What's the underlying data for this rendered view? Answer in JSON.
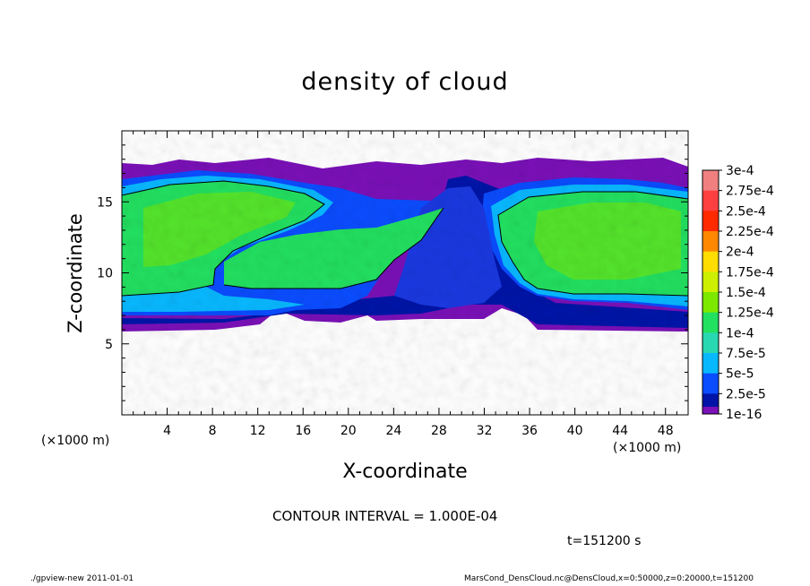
{
  "chart_data": {
    "type": "heatmap",
    "title": "density of cloud",
    "xlabel": "X-coordinate",
    "ylabel": "Z-coordinate",
    "x_unit": "(×1000 m)",
    "x_unit_secondary": "(×1000 m)",
    "xlim": [
      0,
      50
    ],
    "ylim": [
      0,
      20
    ],
    "x_ticks": [
      4,
      8,
      12,
      16,
      20,
      24,
      28,
      32,
      36,
      40,
      44,
      48
    ],
    "y_ticks": [
      5,
      10,
      15
    ],
    "colorbar": {
      "labels": [
        "3e-4",
        "2.75e-4",
        "2.5e-4",
        "2.25e-4",
        "2e-4",
        "1.75e-4",
        "1.5e-4",
        "1.25e-4",
        "1e-4",
        "7.5e-5",
        "5e-5",
        "2.5e-5",
        "1e-16"
      ],
      "colors": [
        "#f08080",
        "#ff4040",
        "#ff2a00",
        "#ff8800",
        "#ffdd00",
        "#ccf000",
        "#7de800",
        "#22e060",
        "#28d8b0",
        "#08b8ff",
        "#0a4cff",
        "#0014a8",
        "#7a10b8"
      ]
    },
    "contour_interval": "CONTOUR INTERVAL = 1.000E-04",
    "time_label": "t=151200 s"
  },
  "footer": {
    "left": "./gpview-new   2011-01-01",
    "right": "MarsCond_DensCloud.nc@DensCloud,x=0:50000,z=0:20000,t=151200"
  }
}
